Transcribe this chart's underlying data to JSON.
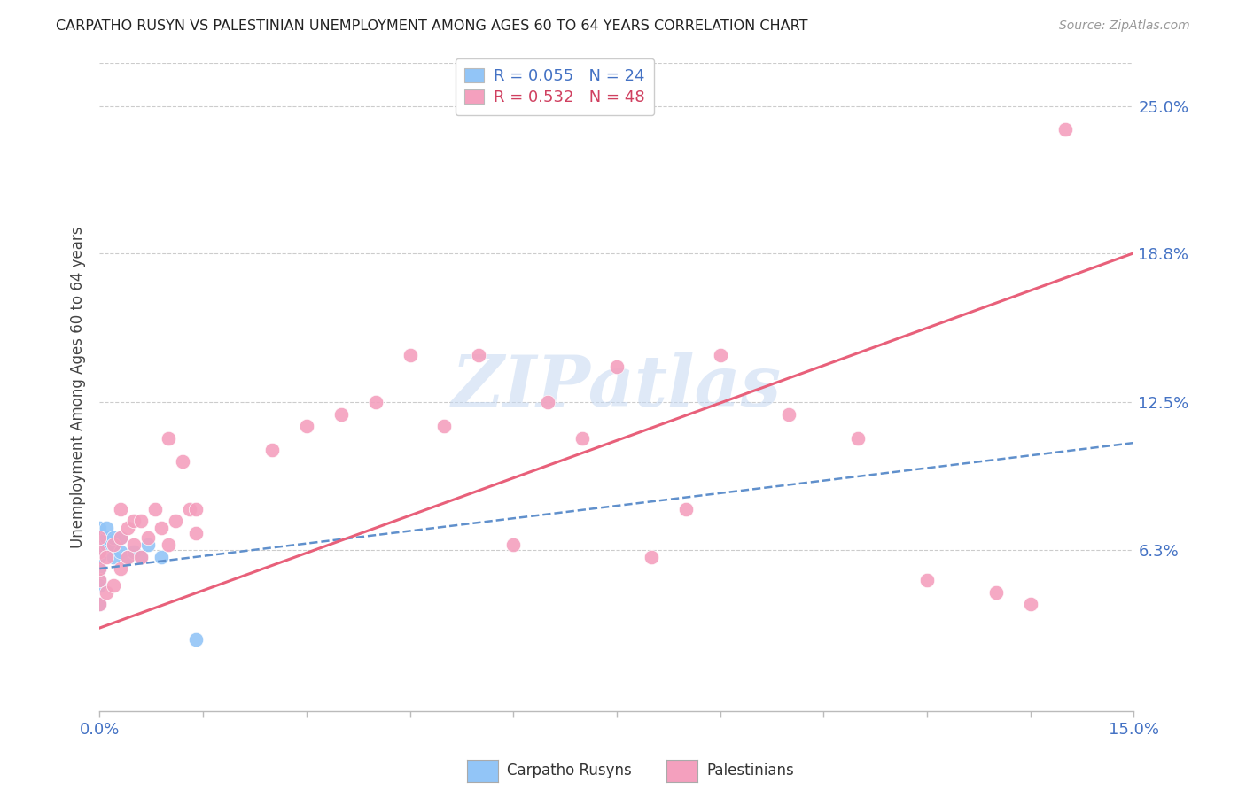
{
  "title": "CARPATHO RUSYN VS PALESTINIAN UNEMPLOYMENT AMONG AGES 60 TO 64 YEARS CORRELATION CHART",
  "source": "Source: ZipAtlas.com",
  "ylabel": "Unemployment Among Ages 60 to 64 years",
  "ytick_labels": [
    "6.3%",
    "12.5%",
    "18.8%",
    "25.0%"
  ],
  "ytick_values": [
    0.063,
    0.125,
    0.188,
    0.25
  ],
  "xlim": [
    0.0,
    0.15
  ],
  "ylim": [
    -0.005,
    0.268
  ],
  "legend_R1": "R = 0.055",
  "legend_N1": "N = 24",
  "legend_R2": "R = 0.532",
  "legend_N2": "N = 48",
  "color_blue": "#92C5F7",
  "color_pink": "#F4A0BE",
  "line_color_blue": "#6090CC",
  "line_color_pink": "#E8607A",
  "watermark": "ZIPatlas",
  "blue_line_x0": 0.0,
  "blue_line_y0": 0.055,
  "blue_line_x1": 0.15,
  "blue_line_y1": 0.108,
  "pink_line_x0": 0.0,
  "pink_line_y0": 0.03,
  "pink_line_x1": 0.15,
  "pink_line_y1": 0.188,
  "carpatho_x": [
    0.0,
    0.0,
    0.0,
    0.0,
    0.0,
    0.0,
    0.0,
    0.0,
    0.0,
    0.0,
    0.001,
    0.001,
    0.001,
    0.002,
    0.002,
    0.002,
    0.003,
    0.003,
    0.004,
    0.005,
    0.006,
    0.007,
    0.009,
    0.014
  ],
  "carpatho_y": [
    0.055,
    0.06,
    0.062,
    0.065,
    0.068,
    0.07,
    0.072,
    0.05,
    0.048,
    0.04,
    0.065,
    0.068,
    0.072,
    0.06,
    0.065,
    0.068,
    0.062,
    0.068,
    0.06,
    0.062,
    0.06,
    0.065,
    0.06,
    0.025
  ],
  "palestinian_x": [
    0.0,
    0.0,
    0.0,
    0.0,
    0.0,
    0.001,
    0.001,
    0.002,
    0.002,
    0.003,
    0.003,
    0.003,
    0.004,
    0.004,
    0.005,
    0.005,
    0.006,
    0.006,
    0.007,
    0.008,
    0.009,
    0.01,
    0.01,
    0.011,
    0.012,
    0.013,
    0.014,
    0.014,
    0.025,
    0.03,
    0.035,
    0.04,
    0.045,
    0.05,
    0.055,
    0.06,
    0.065,
    0.07,
    0.075,
    0.08,
    0.085,
    0.09,
    0.1,
    0.11,
    0.12,
    0.13,
    0.135,
    0.14
  ],
  "palestinian_y": [
    0.04,
    0.05,
    0.055,
    0.062,
    0.068,
    0.045,
    0.06,
    0.048,
    0.065,
    0.055,
    0.068,
    0.08,
    0.06,
    0.072,
    0.065,
    0.075,
    0.06,
    0.075,
    0.068,
    0.08,
    0.072,
    0.065,
    0.11,
    0.075,
    0.1,
    0.08,
    0.07,
    0.08,
    0.105,
    0.115,
    0.12,
    0.125,
    0.145,
    0.115,
    0.145,
    0.065,
    0.125,
    0.11,
    0.14,
    0.06,
    0.08,
    0.145,
    0.12,
    0.11,
    0.05,
    0.045,
    0.04,
    0.24
  ]
}
